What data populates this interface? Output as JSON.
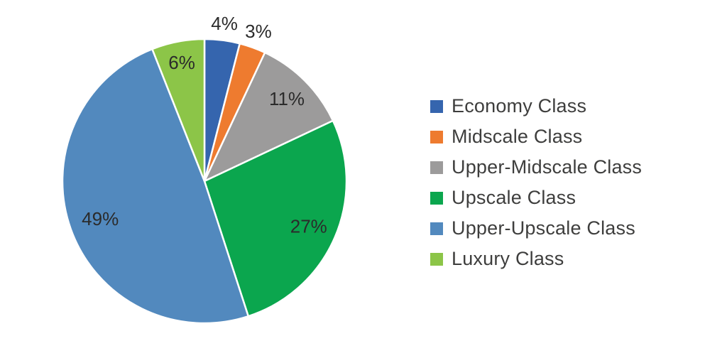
{
  "chart_data": {
    "type": "pie",
    "title": "",
    "categories": [
      "Economy Class",
      "Midscale Class",
      "Upper-Midscale Class",
      "Upscale Class",
      "Upper-Upscale Class",
      "Luxury Class"
    ],
    "values": [
      4,
      3,
      11,
      27,
      49,
      6
    ],
    "labels": [
      "4%",
      "3%",
      "11%",
      "27%",
      "49%",
      "6%"
    ],
    "colors": [
      "#3565AE",
      "#EE7B2F",
      "#9C9B9B",
      "#0BA64E",
      "#5289BE",
      "#8CC548"
    ],
    "start_angle_deg": 0,
    "direction": "clockwise",
    "legend_position": "right",
    "slice_border_color": "#FFFFFF",
    "label_color": "#2B2B2B",
    "legend_text_color": "#3E3E3D",
    "background": "#FFFFFF"
  }
}
